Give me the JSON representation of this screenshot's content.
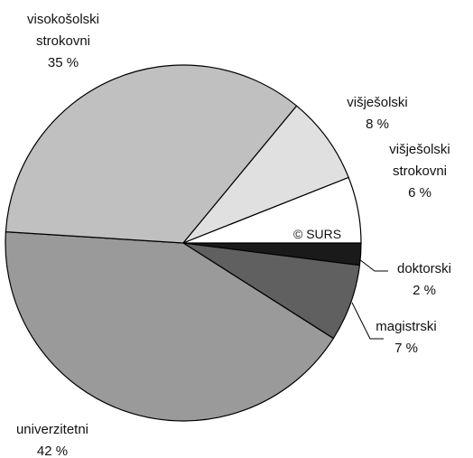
{
  "chart_data": {
    "type": "pie",
    "categories": [
      "doktorski",
      "magistrski",
      "univerzitetni",
      "visokošolski strokovni",
      "višješolski",
      "višješolski strokovni"
    ],
    "values": [
      2,
      7,
      42,
      35,
      8,
      6
    ],
    "value_labels": [
      "2 %",
      "7 %",
      "42 %",
      "35 %",
      "8 %",
      "6 %"
    ],
    "colors": [
      "#1a1a1a",
      "#606060",
      "#9a9a9a",
      "#c0c0c0",
      "#e0e0e0",
      "#ffffff"
    ],
    "annotation": "© SURS"
  }
}
